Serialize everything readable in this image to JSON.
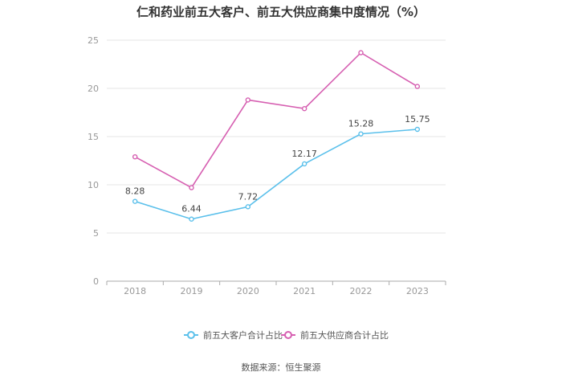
{
  "chart_data": {
    "type": "line",
    "title": "仁和药业前五大客户、前五大供应商集中度情况（%）",
    "categories": [
      "2018",
      "2019",
      "2020",
      "2021",
      "2022",
      "2023"
    ],
    "ylim": [
      0,
      25
    ],
    "yticks": [
      0,
      5,
      10,
      15,
      20,
      25
    ],
    "grid": true,
    "legend_position": "bottom",
    "series": [
      {
        "name": "前五大客户合计占比",
        "values": [
          8.28,
          6.44,
          7.72,
          12.17,
          15.28,
          15.75
        ],
        "labels": [
          "8.28",
          "6.44",
          "7.72",
          "12.17",
          "15.28",
          "15.75"
        ],
        "color": "#5bc0eb"
      },
      {
        "name": "前五大供应商合计占比",
        "values": [
          12.9,
          9.7,
          18.8,
          17.9,
          23.7,
          20.2
        ],
        "color": "#d65fb1"
      }
    ],
    "source": "数据来源：恒生聚源"
  }
}
